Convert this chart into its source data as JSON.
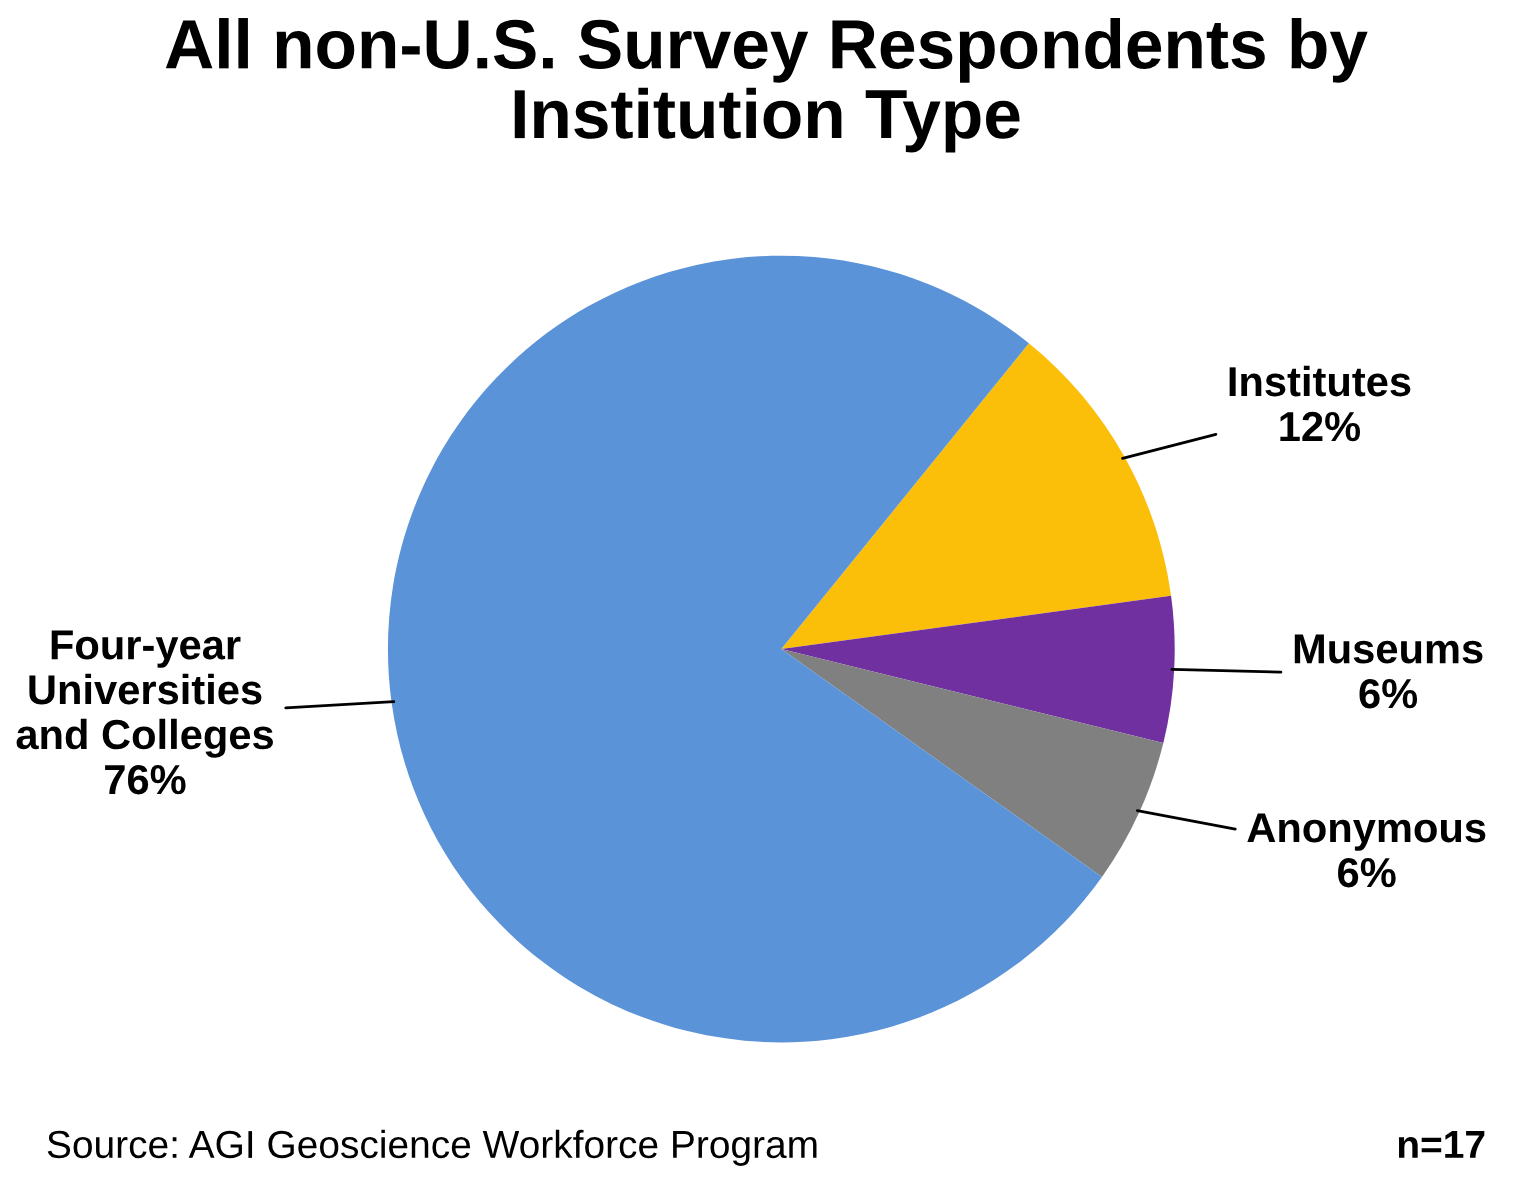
{
  "chart_data": {
    "type": "pie",
    "title": "All non-U.S. Survey Respondents by\nInstitution Type",
    "categories": [
      "Institutes",
      "Museums",
      "Anonymous",
      "Four-year\nUniversities\nand Colleges"
    ],
    "values": [
      12,
      6,
      6,
      76
    ],
    "colors": [
      "#fbbf0a",
      "#7030a0",
      "#808080",
      "#5b93d8"
    ],
    "value_labels": [
      "12%",
      "6%",
      "6%",
      "76%"
    ],
    "annotations": [
      "Source: AGI Geoscience Workforce Program",
      "n=17"
    ],
    "legend": false
  }
}
